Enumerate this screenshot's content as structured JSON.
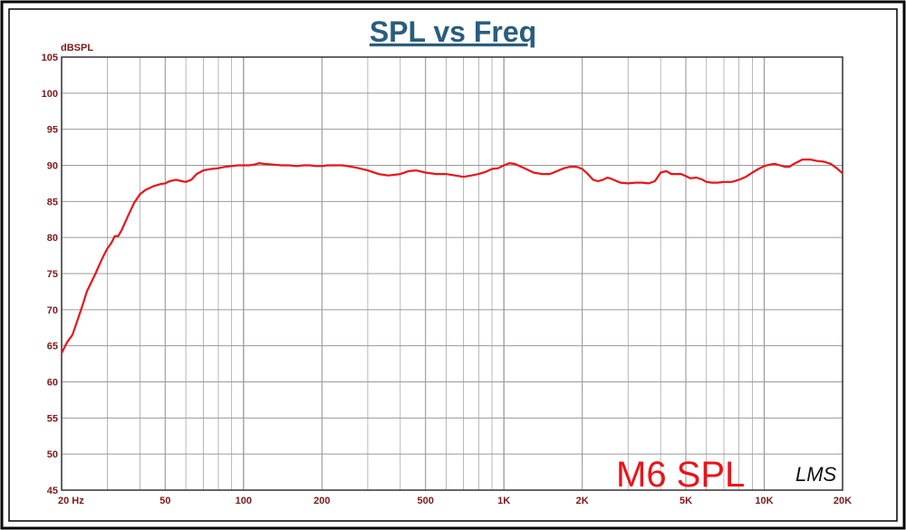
{
  "chart_data": {
    "type": "line",
    "title": "SPL vs Freq",
    "ylabel": "dBSPL",
    "xlabel": "",
    "x_scale": "log",
    "xlim": [
      20,
      20000
    ],
    "ylim": [
      45,
      105
    ],
    "grid": true,
    "y_ticks": [
      45,
      50,
      55,
      60,
      65,
      70,
      75,
      80,
      85,
      90,
      95,
      100,
      105
    ],
    "x_ticks": [
      {
        "value": 20,
        "label": "20  Hz"
      },
      {
        "value": 50,
        "label": "50"
      },
      {
        "value": 100,
        "label": "100"
      },
      {
        "value": 200,
        "label": "200"
      },
      {
        "value": 500,
        "label": "500"
      },
      {
        "value": 1000,
        "label": "1K"
      },
      {
        "value": 2000,
        "label": "2K"
      },
      {
        "value": 5000,
        "label": "5K"
      },
      {
        "value": 10000,
        "label": "10K"
      },
      {
        "value": 20000,
        "label": "20K"
      }
    ],
    "annotations": [
      "M6  SPL",
      "LMS"
    ],
    "colors": {
      "curve": "#e8141b",
      "title": "#2a5d7c",
      "axis_text": "#7a1a1a",
      "grid": "#9a9a9a"
    },
    "series": [
      {
        "x": [
          20,
          21,
          22,
          23,
          24,
          25,
          26,
          27,
          28,
          29,
          30,
          31,
          32,
          33,
          34,
          35,
          36,
          38,
          40,
          42,
          45,
          48,
          50,
          52,
          55,
          58,
          60,
          63,
          66,
          70,
          75,
          80,
          85,
          90,
          95,
          100,
          105,
          110,
          115,
          120,
          130,
          140,
          150,
          160,
          170,
          180,
          190,
          200,
          210,
          220,
          230,
          240,
          250,
          270,
          300,
          330,
          360,
          400,
          430,
          460,
          500,
          550,
          600,
          650,
          700,
          750,
          800,
          850,
          900,
          950,
          1000,
          1050,
          1100,
          1200,
          1300,
          1400,
          1500,
          1600,
          1700,
          1800,
          1900,
          2000,
          2100,
          2200,
          2300,
          2400,
          2500,
          2600,
          2800,
          3000,
          3200,
          3400,
          3600,
          3800,
          4000,
          4200,
          4400,
          4600,
          4800,
          5000,
          5200,
          5500,
          5800,
          6000,
          6300,
          6600,
          7000,
          7500,
          8000,
          8500,
          9000,
          9500,
          10000,
          10500,
          11000,
          11500,
          12000,
          12500,
          13000,
          13500,
          14000,
          15000,
          16000,
          17000,
          18000,
          19000,
          20000
        ],
        "y": [
          64,
          65.5,
          66.5,
          68.5,
          70.5,
          72.5,
          73.8,
          75,
          76.3,
          77.5,
          78.5,
          79.2,
          80.2,
          80.2,
          81,
          82,
          83,
          84.8,
          86,
          86.6,
          87.1,
          87.4,
          87.5,
          87.8,
          88.0,
          87.8,
          87.7,
          88.0,
          88.8,
          89.3,
          89.5,
          89.6,
          89.8,
          89.9,
          90.0,
          90.0,
          90.0,
          90.1,
          90.3,
          90.2,
          90.1,
          90.0,
          90.0,
          89.9,
          90.0,
          90.0,
          89.9,
          89.9,
          90.0,
          90.0,
          90.0,
          90.0,
          89.9,
          89.7,
          89.3,
          88.8,
          88.6,
          88.8,
          89.2,
          89.3,
          89.0,
          88.8,
          88.8,
          88.6,
          88.4,
          88.6,
          88.8,
          89.1,
          89.5,
          89.6,
          90.0,
          90.3,
          90.2,
          89.6,
          89.0,
          88.8,
          88.8,
          89.2,
          89.6,
          89.8,
          89.8,
          89.5,
          88.8,
          88.0,
          87.8,
          88.0,
          88.3,
          88.1,
          87.6,
          87.5,
          87.6,
          87.6,
          87.5,
          87.8,
          89.0,
          89.2,
          88.8,
          88.8,
          88.8,
          88.5,
          88.2,
          88.3,
          88.0,
          87.7,
          87.6,
          87.6,
          87.7,
          87.7,
          88.0,
          88.4,
          89.0,
          89.5,
          89.9,
          90.1,
          90.2,
          90.0,
          89.8,
          89.8,
          90.2,
          90.5,
          90.8,
          90.8,
          90.6,
          90.5,
          90.2,
          89.6,
          88.9
        ]
      }
    ]
  }
}
